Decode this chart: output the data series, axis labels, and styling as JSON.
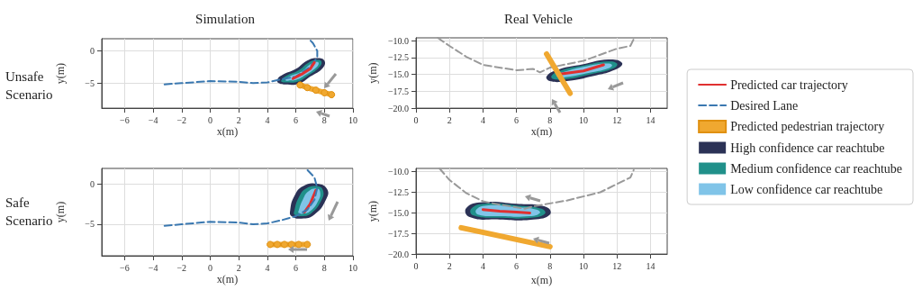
{
  "chart_data": [
    {
      "type": "line",
      "title": "Simulation",
      "xlabel": "x(m)",
      "ylabel": "y(m)",
      "xlim": [
        -7.6,
        10
      ],
      "xticks": [
        -6,
        -4,
        -2,
        0,
        2,
        4,
        6,
        8,
        10
      ],
      "ylim": [
        -8.9,
        1.9
      ],
      "yticks": [
        -5,
        0
      ],
      "grid": true,
      "annotations": [
        "Unsafe Scenario"
      ],
      "series": [
        {
          "type": "area",
          "color": "#2b3256",
          "x": [
            4.7,
            5.0,
            6.0,
            6.8,
            7.5,
            8.0,
            7.9,
            7.0,
            6.2,
            5.3,
            4.8
          ],
          "values": [
            -4.5,
            -3.8,
            -2.8,
            -1.5,
            -1.1,
            -1.5,
            -2.6,
            -4.0,
            -5.1,
            -5.2,
            -5.0
          ]
        },
        {
          "type": "area",
          "color": "#20908a",
          "x": [
            5.0,
            5.3,
            6.2,
            6.9,
            7.5,
            7.8,
            7.6,
            6.8,
            6.1,
            5.4,
            5.0
          ],
          "values": [
            -4.5,
            -3.9,
            -3.0,
            -1.8,
            -1.4,
            -1.7,
            -2.6,
            -3.9,
            -4.8,
            -4.9,
            -4.8
          ]
        },
        {
          "type": "area",
          "color": "#80c4e8",
          "x": [
            5.3,
            5.6,
            6.4,
            7.0,
            7.4,
            7.6,
            7.4,
            6.7,
            6.0,
            5.5,
            5.3
          ],
          "values": [
            -4.4,
            -3.9,
            -3.2,
            -2.1,
            -1.7,
            -1.9,
            -2.6,
            -3.7,
            -4.5,
            -4.6,
            -4.6
          ]
        },
        {
          "color": "#3a78b0",
          "line_style": "dashed",
          "x": [
            -3.2,
            -2,
            0,
            2,
            3,
            4,
            5,
            6,
            7,
            7.5,
            7.5,
            7.2,
            6.9
          ],
          "values": [
            -5.2,
            -5,
            -4.7,
            -4.8,
            -5,
            -4.9,
            -4.4,
            -4,
            -2.5,
            -1,
            0,
            1.2,
            1.9
          ]
        },
        {
          "color": "#e03030",
          "x": [
            5.8,
            6.5,
            7,
            7.3
          ],
          "values": [
            -4.3,
            -3.5,
            -2.8,
            -1.8
          ]
        },
        {
          "color": "#f0a830",
          "marker": "circle",
          "x": [
            6.3,
            6.8,
            7.4,
            8.0,
            8.5
          ],
          "values": [
            -5.3,
            -5.7,
            -6.1,
            -6.5,
            -6.8
          ]
        }
      ]
    },
    {
      "type": "line",
      "title": "Real Vehicle",
      "xlabel": "x(m)",
      "ylabel": "y(m)",
      "xlim": [
        0,
        15
      ],
      "xticks": [
        0,
        2,
        4,
        6,
        8,
        10,
        12,
        14
      ],
      "ylim": [
        -20,
        -9.6
      ],
      "yticks": [
        {
          "value": -20,
          "label": "−20.0"
        },
        -17.5,
        {
          "value": -15,
          "label": "−15.0"
        },
        -12.5,
        {
          "value": -10,
          "label": "−10.0"
        }
      ],
      "grid": true,
      "series": [
        {
          "type": "area",
          "color": "#2b3256",
          "x": [
            7.8,
            8.5,
            10,
            11.5,
            12.3,
            12,
            10.5,
            9,
            8
          ],
          "values": [
            -15.3,
            -14.3,
            -13.5,
            -12.8,
            -13.3,
            -14.2,
            -15.3,
            -16,
            -16
          ]
        },
        {
          "type": "area",
          "color": "#20908a",
          "x": [
            8.1,
            8.7,
            10,
            11.4,
            12,
            11.8,
            10.4,
            9,
            8.2
          ],
          "values": [
            -15.2,
            -14.4,
            -13.7,
            -13.1,
            -13.4,
            -14.1,
            -15.0,
            -15.7,
            -15.7
          ]
        },
        {
          "type": "area",
          "color": "#80c4e8",
          "x": [
            8.4,
            8.9,
            10,
            11.3,
            11.7,
            11.5,
            10.3,
            9,
            8.5
          ],
          "values": [
            -15.1,
            -14.6,
            -13.9,
            -13.4,
            -13.6,
            -14.1,
            -14.8,
            -15.4,
            -15.4
          ]
        },
        {
          "color": "#999999",
          "line_style": "dashed",
          "x": [
            1.3,
            2,
            3,
            4,
            6,
            7,
            7.4,
            8,
            10,
            12,
            12.8,
            13
          ],
          "values": [
            -9.6,
            -10.8,
            -12.4,
            -13.6,
            -14.4,
            -14.2,
            -14.7,
            -14,
            -13,
            -11.2,
            -10.8,
            -9.8
          ]
        },
        {
          "color": "#e03030",
          "x": [
            8.5,
            10,
            11.2
          ],
          "values": [
            -15,
            -14.5,
            -13.6
          ]
        },
        {
          "color": "#f0a830",
          "x": [
            7.8,
            9.2
          ],
          "values": [
            -12,
            -17.8
          ]
        }
      ]
    },
    {
      "type": "line",
      "xlabel": "x(m)",
      "ylabel": "y(m)",
      "xlim": [
        -7.6,
        10
      ],
      "xticks": [
        -6,
        -4,
        -2,
        0,
        2,
        4,
        6,
        8,
        10
      ],
      "ylim": [
        -8.9,
        1.9
      ],
      "yticks": [
        -5,
        0
      ],
      "grid": true,
      "annotations": [
        "Safe Scenario"
      ],
      "legend": "right",
      "series": [
        {
          "name": "Predicted car trajectory",
          "color": "#e03030",
          "x": [
            6.6,
            7,
            7.4
          ],
          "values": [
            -3.5,
            -2.5,
            -0.8
          ]
        },
        {
          "name": "Desired Lane",
          "color": "#3a78b0",
          "line_style": "dashed",
          "x": [
            -3.2,
            -2,
            0,
            2,
            3,
            4,
            5,
            6,
            6.8,
            7.3,
            7.5,
            7.3,
            6.7
          ],
          "values": [
            -5.2,
            -5,
            -4.7,
            -4.8,
            -5,
            -4.9,
            -4.5,
            -4,
            -3.2,
            -2,
            -0.5,
            0.8,
            1.9
          ]
        },
        {
          "name": "Predicted pedestrian trajectory",
          "color": "#f0a830",
          "marker": "circle",
          "x": [
            4.2,
            4.7,
            5.2,
            5.7,
            6.2,
            6.8
          ],
          "values": [
            -7.5,
            -7.5,
            -7.5,
            -7.5,
            -7.5,
            -7.5
          ]
        },
        {
          "name": "High confidence car reachtube",
          "type": "area",
          "color": "#2b3256",
          "x": [
            5.6,
            5.9,
            6.5,
            7.5,
            8.2,
            8.1,
            7.3,
            6.4,
            5.7
          ],
          "values": [
            -3.3,
            -1.5,
            -0.3,
            0.0,
            -0.7,
            -2.0,
            -3.8,
            -4.3,
            -4.0
          ]
        },
        {
          "name": "Medium confidence car reachtube",
          "type": "area",
          "color": "#20908a",
          "x": [
            5.9,
            6.2,
            6.7,
            7.5,
            7.9,
            7.8,
            7.1,
            6.4,
            5.9
          ],
          "values": [
            -3.3,
            -1.7,
            -0.6,
            -0.3,
            -0.8,
            -2.0,
            -3.6,
            -4.0,
            -3.8
          ]
        },
        {
          "name": "Low confidence car reachtube",
          "type": "area",
          "color": "#80c4e8",
          "x": [
            6.2,
            6.5,
            6.9,
            7.5,
            7.7,
            7.6,
            7.0,
            6.5,
            6.2
          ],
          "values": [
            -3.3,
            -1.9,
            -0.9,
            -0.6,
            -1.0,
            -2.0,
            -3.4,
            -3.7,
            -3.6
          ]
        }
      ]
    },
    {
      "type": "line",
      "xlabel": "x(m)",
      "ylabel": "y(m)",
      "xlim": [
        0,
        15
      ],
      "xticks": [
        0,
        2,
        4,
        6,
        8,
        10,
        12,
        14
      ],
      "ylim": [
        -20,
        -9.6
      ],
      "yticks": [
        {
          "value": -20,
          "label": "−20.0"
        },
        -17.5,
        {
          "value": -15,
          "label": "−15.0"
        },
        -12.5,
        {
          "value": -10,
          "label": "−10.0"
        }
      ],
      "grid": true,
      "series": [
        {
          "type": "area",
          "color": "#2b3256",
          "x": [
            3,
            4,
            6,
            7.8,
            8,
            7,
            5,
            3.2
          ],
          "values": [
            -14.4,
            -13.7,
            -13.9,
            -14.3,
            -15.2,
            -15.8,
            -15.8,
            -15.5
          ]
        },
        {
          "type": "area",
          "color": "#20908a",
          "x": [
            3.3,
            4.1,
            6,
            7.5,
            7.7,
            6.9,
            5,
            3.4
          ],
          "values": [
            -14.5,
            -13.9,
            -14.1,
            -14.5,
            -15.1,
            -15.6,
            -15.6,
            -15.3
          ]
        },
        {
          "type": "area",
          "color": "#80c4e8",
          "x": [
            3.6,
            4.2,
            6,
            7.2,
            7.4,
            6.8,
            5,
            3.7
          ],
          "values": [
            -14.6,
            -14.1,
            -14.3,
            -14.6,
            -15.0,
            -15.4,
            -15.4,
            -15.2
          ]
        },
        {
          "color": "#999999",
          "line_style": "dashed",
          "x": [
            1.4,
            2,
            3,
            4,
            5,
            6.5,
            7,
            9,
            11,
            12.8,
            13
          ],
          "values": [
            -9.6,
            -11,
            -12.6,
            -13.6,
            -14,
            -14.5,
            -14.2,
            -13.5,
            -12.5,
            -10.7,
            -9.8
          ]
        },
        {
          "color": "#e03030",
          "x": [
            4,
            5,
            6,
            6.8
          ],
          "values": [
            -14.6,
            -14.8,
            -14.9,
            -15
          ]
        },
        {
          "color": "#f0a830",
          "x": [
            2.7,
            8
          ],
          "values": [
            -16.8,
            -19.1
          ]
        }
      ]
    }
  ]
}
